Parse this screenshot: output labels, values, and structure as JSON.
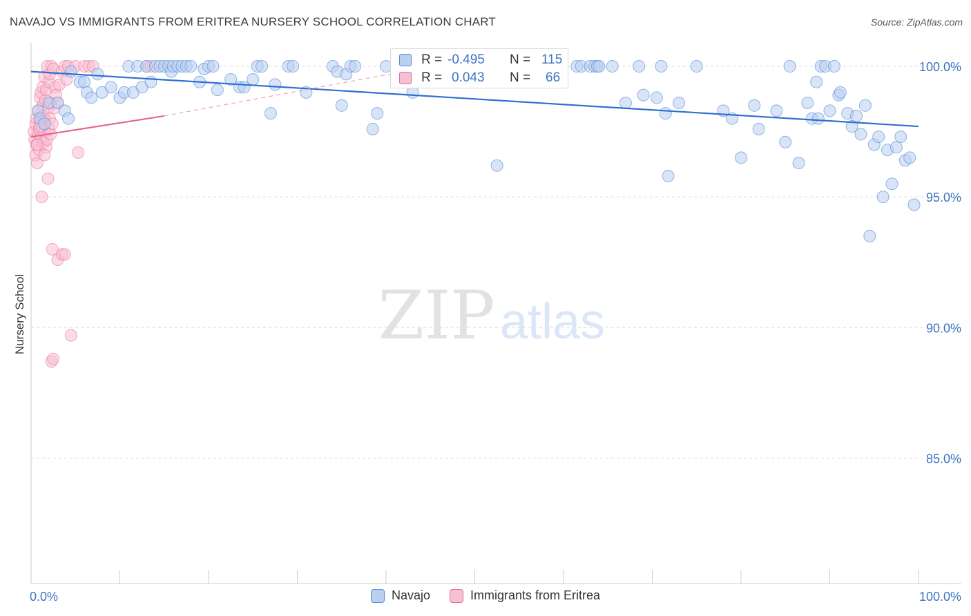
{
  "header": {
    "title": "NAVAJO VS IMMIGRANTS FROM ERITREA NURSERY SCHOOL CORRELATION CHART",
    "source": "Source: ZipAtlas.com"
  },
  "watermark": {
    "zip": "ZIP",
    "atlas": "atlas"
  },
  "stats": {
    "rows": [
      {
        "r_label": "R =",
        "r_value": "-0.495",
        "n_label": "N =",
        "n_value": "115",
        "color": "#9dbde9"
      },
      {
        "r_label": "R =",
        "r_value": "0.043",
        "n_label": "N =",
        "n_value": "66",
        "color": "#f5a9c2"
      }
    ],
    "value_color": "#3d73c4"
  },
  "legend": {
    "items": [
      {
        "label": "Navajo",
        "color": "#9dbde9"
      },
      {
        "label": "Immigrants from Eritrea",
        "color": "#f5a9c2"
      }
    ]
  },
  "chart_data": {
    "type": "scatter",
    "ylabel": "Nursery School",
    "xlabel": "",
    "xlim": [
      0,
      100
    ],
    "ylim": [
      80.2,
      100.9
    ],
    "x_tick_labels": [
      {
        "value": 0,
        "label": "0.0%"
      },
      {
        "value": 100,
        "label": "100.0%"
      }
    ],
    "y_tick_labels": [
      {
        "value": 100,
        "label": "100.0%"
      },
      {
        "value": 95,
        "label": "95.0%"
      },
      {
        "value": 90,
        "label": "90.0%"
      },
      {
        "value": 85,
        "label": "85.0%"
      }
    ],
    "grid": true,
    "colors": {
      "navajo": "#5b8ed8",
      "navajo_fill": "#b9d0f0",
      "eritrea": "#e86b95",
      "eritrea_fill": "#f7bfd2",
      "tick_label": "#3d73c4"
    },
    "series": [
      {
        "name": "Navajo",
        "trend": {
          "x0": 0,
          "y0": 99.8,
          "x1": 100,
          "y1": 97.7
        },
        "points": [
          [
            0.8,
            98.3
          ],
          [
            1.0,
            98.0
          ],
          [
            1.5,
            97.8
          ],
          [
            2.0,
            98.6
          ],
          [
            3.0,
            98.6
          ],
          [
            3.8,
            98.3
          ],
          [
            4.2,
            98.0
          ],
          [
            4.5,
            99.8
          ],
          [
            5.5,
            99.4
          ],
          [
            6.0,
            99.4
          ],
          [
            6.3,
            99.0
          ],
          [
            6.8,
            98.8
          ],
          [
            7.5,
            99.7
          ],
          [
            8.0,
            99.0
          ],
          [
            9.0,
            99.2
          ],
          [
            10.0,
            98.8
          ],
          [
            10.5,
            99.0
          ],
          [
            11.0,
            100.0
          ],
          [
            11.5,
            99.0
          ],
          [
            12.0,
            100.0
          ],
          [
            12.5,
            99.2
          ],
          [
            13.0,
            100.0
          ],
          [
            13.5,
            99.4
          ],
          [
            14.0,
            100.0
          ],
          [
            14.5,
            100.0
          ],
          [
            15.0,
            100.0
          ],
          [
            15.5,
            100.0
          ],
          [
            15.8,
            99.8
          ],
          [
            16.0,
            100.0
          ],
          [
            16.5,
            100.0
          ],
          [
            17.0,
            100.0
          ],
          [
            17.5,
            100.0
          ],
          [
            18.0,
            100.0
          ],
          [
            19.0,
            99.4
          ],
          [
            19.5,
            99.9
          ],
          [
            20.0,
            100.0
          ],
          [
            20.5,
            100.0
          ],
          [
            21.0,
            99.1
          ],
          [
            22.5,
            99.5
          ],
          [
            23.5,
            99.2
          ],
          [
            24.0,
            99.2
          ],
          [
            25.0,
            99.5
          ],
          [
            25.5,
            100.0
          ],
          [
            26.0,
            100.0
          ],
          [
            27.0,
            98.2
          ],
          [
            27.5,
            99.3
          ],
          [
            29.0,
            100.0
          ],
          [
            29.5,
            100.0
          ],
          [
            31.0,
            99.0
          ],
          [
            34.0,
            100.0
          ],
          [
            34.5,
            99.8
          ],
          [
            35.0,
            98.5
          ],
          [
            35.5,
            99.7
          ],
          [
            36.0,
            100.0
          ],
          [
            36.5,
            100.0
          ],
          [
            38.5,
            97.6
          ],
          [
            39.0,
            98.2
          ],
          [
            40.0,
            100.0
          ],
          [
            41.5,
            100.0
          ],
          [
            42.0,
            100.0
          ],
          [
            43.0,
            99.0
          ],
          [
            44.0,
            100.0
          ],
          [
            47.0,
            100.0
          ],
          [
            48.0,
            99.8
          ],
          [
            52.5,
            96.2
          ],
          [
            54.0,
            100.0
          ],
          [
            56.5,
            100.0
          ],
          [
            57.0,
            100.0
          ],
          [
            61.5,
            100.0
          ],
          [
            62.0,
            100.0
          ],
          [
            63.0,
            100.0
          ],
          [
            63.5,
            100.0
          ],
          [
            63.8,
            100.0
          ],
          [
            64.0,
            100.0
          ],
          [
            65.5,
            100.0
          ],
          [
            67.0,
            98.6
          ],
          [
            68.5,
            100.0
          ],
          [
            69.0,
            98.9
          ],
          [
            70.5,
            98.8
          ],
          [
            71.0,
            100.0
          ],
          [
            71.5,
            98.2
          ],
          [
            71.8,
            95.8
          ],
          [
            73.0,
            98.6
          ],
          [
            75.0,
            100.0
          ],
          [
            78.0,
            98.3
          ],
          [
            79.0,
            98.0
          ],
          [
            80.0,
            96.5
          ],
          [
            81.5,
            98.5
          ],
          [
            82.0,
            97.6
          ],
          [
            84.0,
            98.3
          ],
          [
            85.0,
            97.1
          ],
          [
            85.5,
            100.0
          ],
          [
            86.5,
            96.3
          ],
          [
            87.5,
            98.6
          ],
          [
            88.0,
            98.0
          ],
          [
            88.5,
            99.4
          ],
          [
            88.7,
            98.0
          ],
          [
            89.0,
            100.0
          ],
          [
            89.5,
            100.0
          ],
          [
            90.0,
            98.3
          ],
          [
            90.5,
            100.0
          ],
          [
            91.0,
            98.9
          ],
          [
            91.2,
            99.0
          ],
          [
            92.0,
            98.2
          ],
          [
            92.5,
            97.7
          ],
          [
            93.0,
            98.1
          ],
          [
            93.5,
            97.4
          ],
          [
            94.0,
            98.5
          ],
          [
            94.5,
            93.5
          ],
          [
            95.0,
            97.0
          ],
          [
            95.5,
            97.3
          ],
          [
            96.0,
            95.0
          ],
          [
            96.5,
            96.8
          ],
          [
            97.0,
            95.5
          ],
          [
            97.5,
            96.9
          ],
          [
            98.0,
            97.3
          ],
          [
            98.5,
            96.4
          ],
          [
            99.0,
            96.5
          ],
          [
            99.5,
            94.7
          ]
        ]
      },
      {
        "name": "Immigrants from Eritrea",
        "trend": {
          "x0": 0,
          "y0": 97.3,
          "x1": 15,
          "y1": 98.1
        },
        "trend_dashed": {
          "x0": 15,
          "y0": 98.1,
          "x1": 42,
          "y1": 99.8
        },
        "points": [
          [
            0.3,
            97.5
          ],
          [
            0.4,
            97.2
          ],
          [
            0.5,
            97.8
          ],
          [
            0.5,
            96.6
          ],
          [
            0.6,
            97.0
          ],
          [
            0.6,
            98.0
          ],
          [
            0.7,
            96.3
          ],
          [
            0.8,
            97.4
          ],
          [
            0.8,
            98.3
          ],
          [
            0.9,
            97.6
          ],
          [
            0.9,
            96.8
          ],
          [
            1.0,
            97.9
          ],
          [
            1.0,
            98.8
          ],
          [
            1.1,
            97.3
          ],
          [
            1.1,
            99.0
          ],
          [
            1.2,
            97.7
          ],
          [
            1.2,
            95.0
          ],
          [
            1.3,
            98.5
          ],
          [
            1.3,
            99.2
          ],
          [
            1.4,
            97.1
          ],
          [
            1.4,
            98.1
          ],
          [
            1.5,
            97.5
          ],
          [
            1.5,
            99.6
          ],
          [
            1.6,
            97.9
          ],
          [
            1.6,
            98.7
          ],
          [
            1.7,
            96.9
          ],
          [
            1.7,
            99.1
          ],
          [
            1.8,
            97.2
          ],
          [
            1.8,
            100.0
          ],
          [
            1.9,
            98.4
          ],
          [
            1.9,
            95.7
          ],
          [
            2.0,
            97.6
          ],
          [
            2.0,
            99.4
          ],
          [
            2.1,
            98.0
          ],
          [
            2.1,
            99.7
          ],
          [
            2.2,
            97.4
          ],
          [
            2.2,
            98.6
          ],
          [
            2.3,
            100.0
          ],
          [
            2.4,
            97.8
          ],
          [
            2.5,
            99.9
          ],
          [
            2.6,
            98.4
          ],
          [
            2.7,
            99.2
          ],
          [
            2.8,
            98.9
          ],
          [
            3.0,
            98.6
          ],
          [
            3.2,
            99.3
          ],
          [
            3.5,
            99.8
          ],
          [
            3.8,
            100.0
          ],
          [
            4.0,
            99.5
          ],
          [
            4.2,
            100.0
          ],
          [
            2.3,
            88.7
          ],
          [
            2.5,
            88.8
          ],
          [
            2.4,
            93.0
          ],
          [
            3.0,
            92.6
          ],
          [
            3.5,
            92.8
          ],
          [
            3.8,
            92.8
          ],
          [
            4.5,
            89.7
          ],
          [
            5.0,
            100.0
          ],
          [
            5.3,
            96.7
          ],
          [
            6.0,
            100.0
          ],
          [
            6.5,
            100.0
          ],
          [
            7.0,
            100.0
          ],
          [
            13.0,
            100.0
          ],
          [
            13.5,
            100.0
          ],
          [
            0.7,
            97.0
          ],
          [
            1.0,
            97.7
          ],
          [
            1.5,
            96.6
          ]
        ]
      }
    ]
  }
}
